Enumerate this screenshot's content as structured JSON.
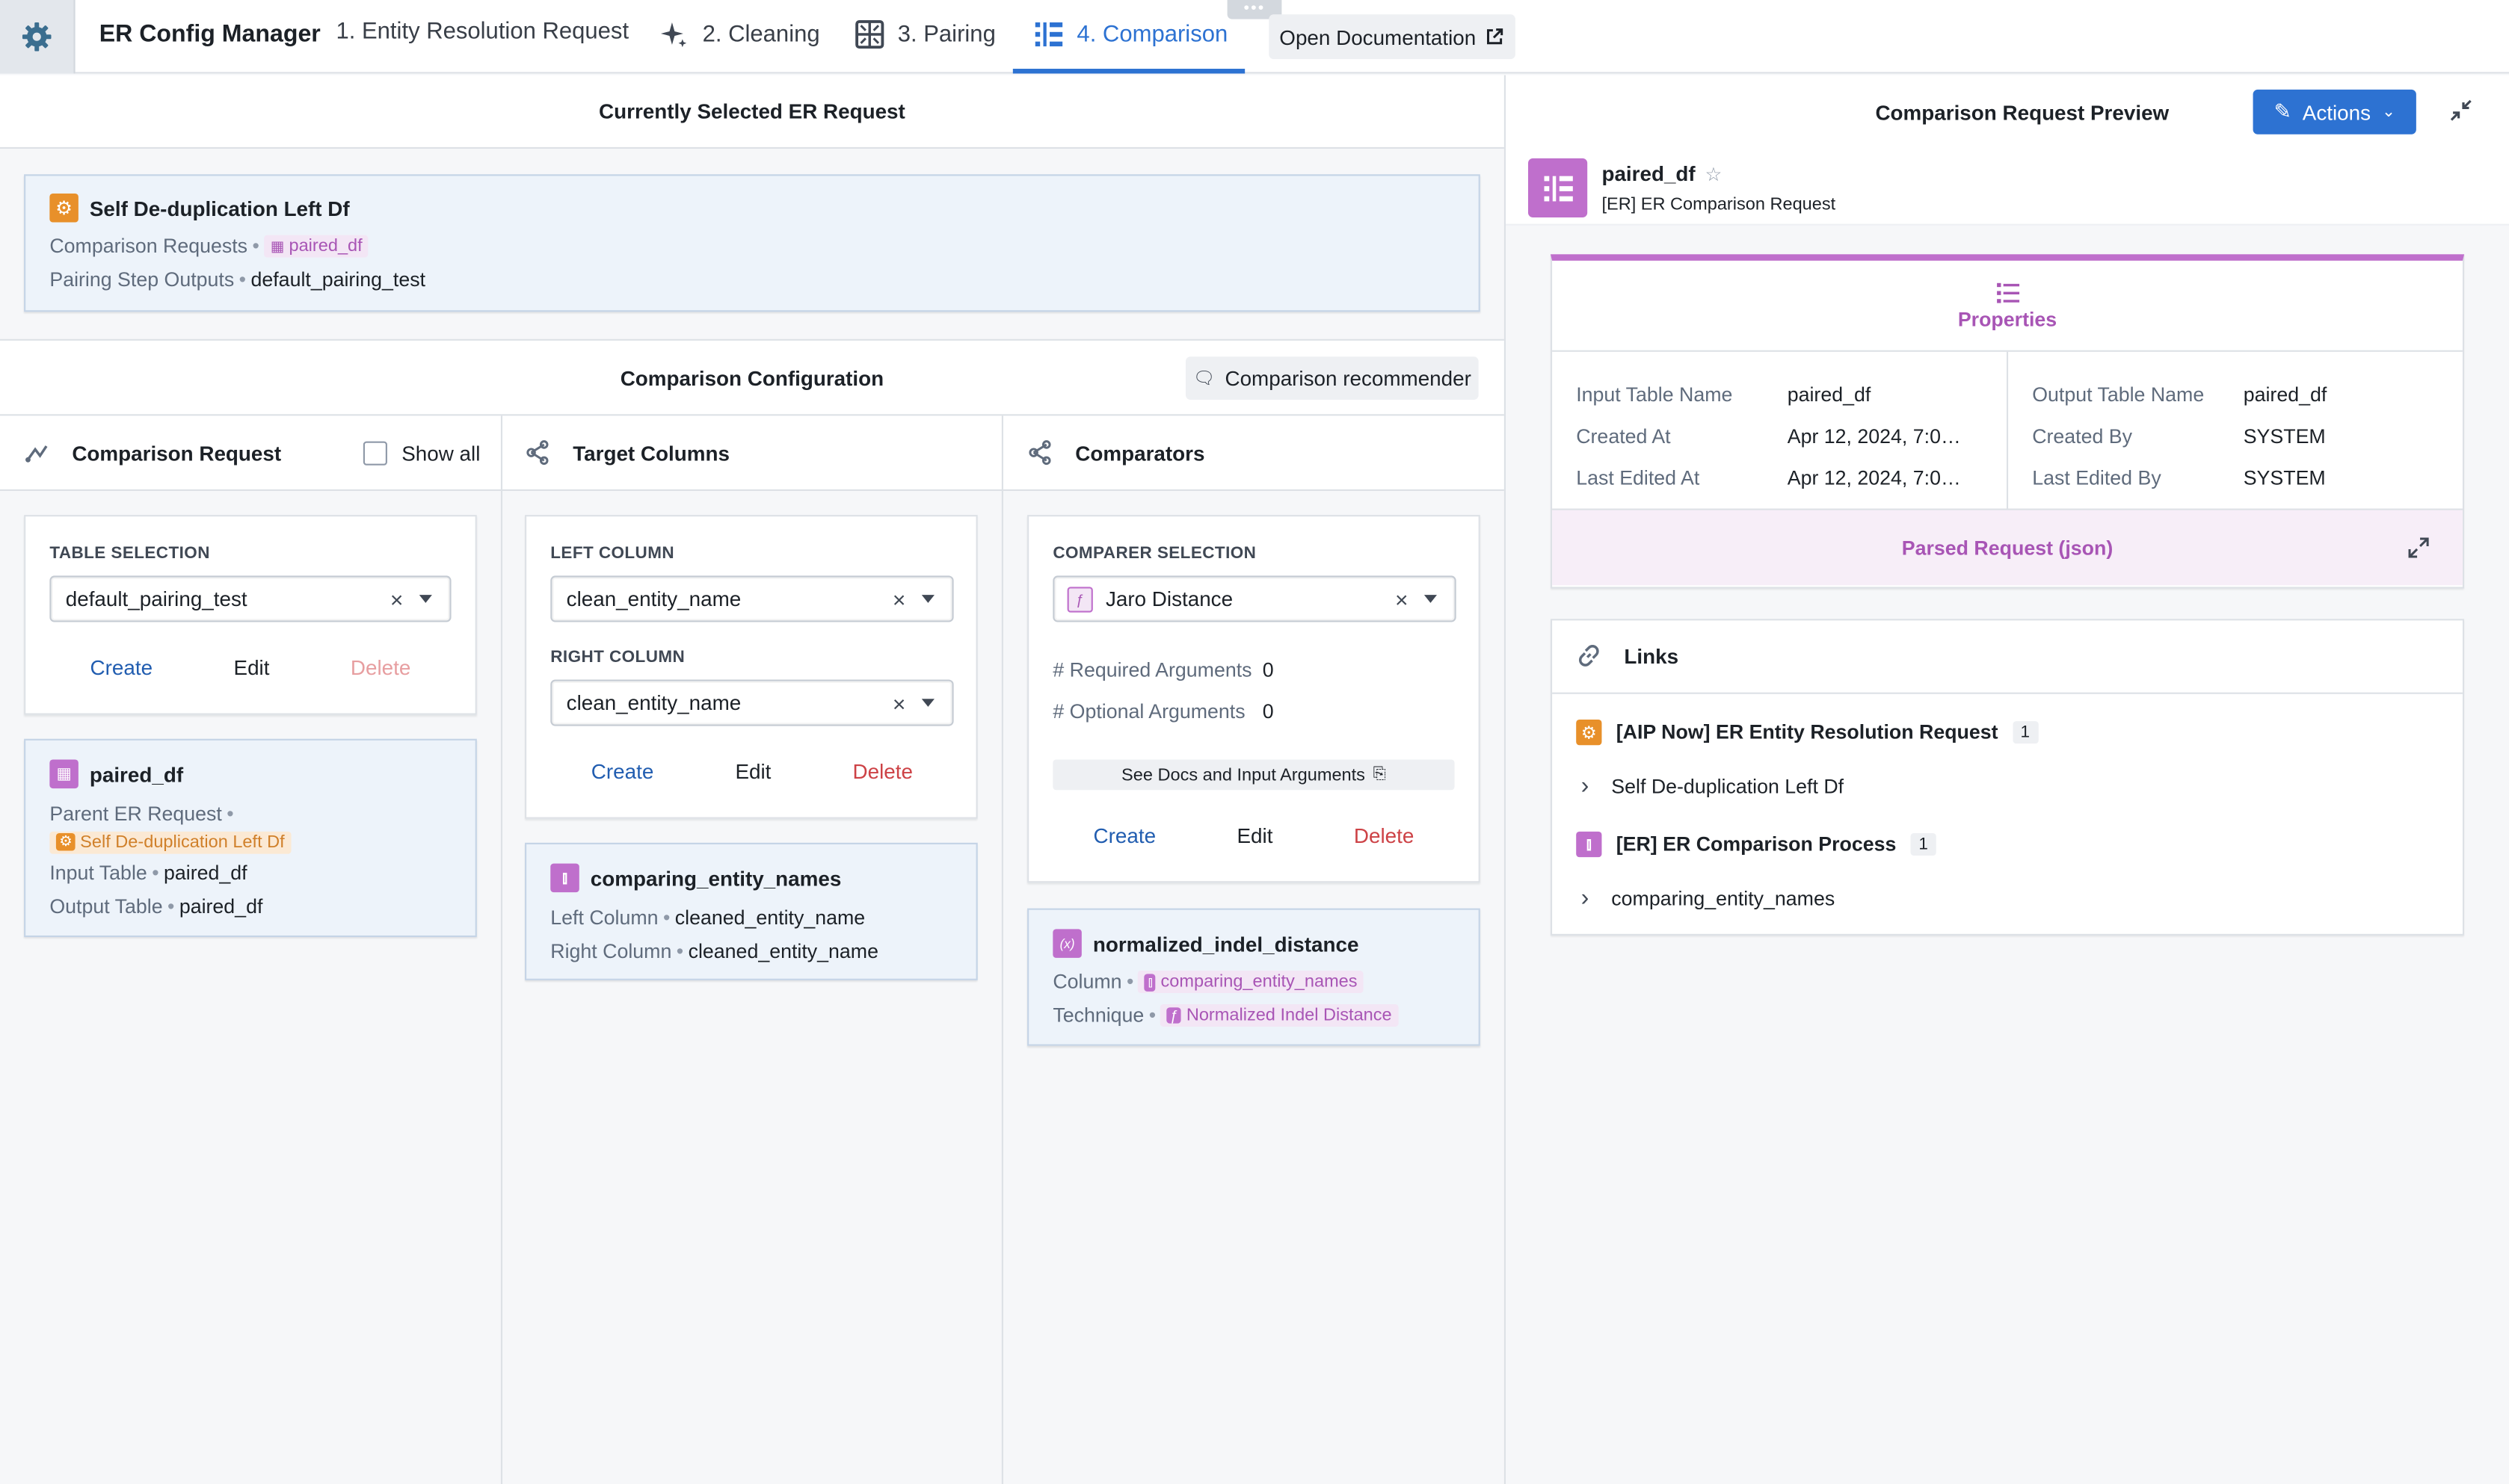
{
  "app": {
    "title": "ER Config Manager",
    "open_docs": "Open Documentation"
  },
  "tabs": [
    {
      "label": "1. Entity Resolution Request",
      "icon": "none"
    },
    {
      "label": "2. Cleaning",
      "icon": "sparkle-icon"
    },
    {
      "label": "3. Pairing",
      "icon": "grid-pairing-icon"
    },
    {
      "label": "4. Comparison",
      "icon": "comparison-icon",
      "active": true
    }
  ],
  "selected_request": {
    "header": "Currently Selected ER Request",
    "title": "Self De-duplication Left Df",
    "comparison_requests_label": "Comparison Requests",
    "comparison_requests_value": "paired_df",
    "pairing_outputs_label": "Pairing Step Outputs",
    "pairing_outputs_value": "default_pairing_test"
  },
  "config": {
    "header": "Comparison Configuration",
    "recommender_button": "Comparison recommender"
  },
  "comparison_request": {
    "header": "Comparison Request",
    "show_all": "Show all",
    "table_selection_label": "TABLE SELECTION",
    "table_selection_value": "default_pairing_test",
    "create": "Create",
    "edit": "Edit",
    "delete": "Delete",
    "item": {
      "title": "paired_df",
      "parent_label": "Parent ER Request",
      "parent_value": "Self De-duplication Left Df",
      "input_label": "Input Table",
      "input_value": "paired_df",
      "output_label": "Output Table",
      "output_value": "paired_df"
    }
  },
  "target_columns": {
    "header": "Target Columns",
    "left_label": "LEFT COLUMN",
    "left_value": "clean_entity_name",
    "right_label": "RIGHT COLUMN",
    "right_value": "clean_entity_name",
    "create": "Create",
    "edit": "Edit",
    "delete": "Delete",
    "item": {
      "title": "comparing_entity_names",
      "left_label": "Left Column",
      "left_value": "cleaned_entity_name",
      "right_label": "Right Column",
      "right_value": "cleaned_entity_name"
    }
  },
  "comparators": {
    "header": "Comparators",
    "selection_label": "COMPARER SELECTION",
    "selection_value": "Jaro Distance",
    "required_label": "# Required Arguments",
    "required_value": "0",
    "optional_label": "# Optional Arguments",
    "optional_value": "0",
    "docs_button": "See Docs and Input Arguments",
    "create": "Create",
    "edit": "Edit",
    "delete": "Delete",
    "item": {
      "title": "normalized_indel_distance",
      "column_label": "Column",
      "column_value": "comparing_entity_names",
      "technique_label": "Technique",
      "technique_value": "Normalized Indel Distance"
    }
  },
  "preview": {
    "header": "Comparison Request Preview",
    "actions": "Actions",
    "object_title": "paired_df",
    "object_type": "[ER] ER Comparison Request",
    "properties_tab": "Properties",
    "props_left": [
      {
        "label": "Input Table Name",
        "value": "paired_df"
      },
      {
        "label": "Created At",
        "value": "Apr 12, 2024, 7:0…"
      },
      {
        "label": "Last Edited At",
        "value": "Apr 12, 2024, 7:0…"
      }
    ],
    "props_right": [
      {
        "label": "Output Table Name",
        "value": "paired_df"
      },
      {
        "label": "Created By",
        "value": "SYSTEM"
      },
      {
        "label": "Last Edited By",
        "value": "SYSTEM"
      }
    ],
    "parsed_request": "Parsed Request (json)",
    "links_header": "Links",
    "links": [
      {
        "type": "[AIP Now] ER Entity Resolution Request",
        "count": "1",
        "item": "Self De-duplication Left Df"
      },
      {
        "type": "[ER] ER Comparison Process",
        "count": "1",
        "item": "comparing_entity_names"
      }
    ]
  },
  "colors": {
    "accent_blue": "#215db0",
    "purple": "#a855b5",
    "orange": "#e8902a",
    "danger": "#cd4246",
    "actions_button": "#2d72d2"
  }
}
